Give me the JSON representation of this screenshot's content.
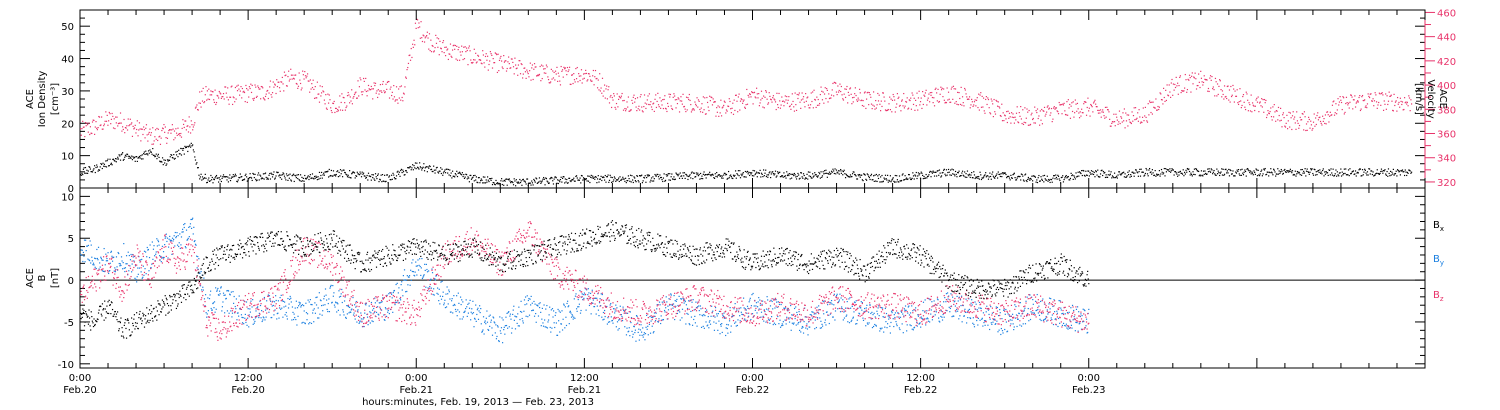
{
  "chart_data": [
    {
      "type": "scatter",
      "title": "",
      "ylabel_lines": [
        "ACE",
        "Ion Density",
        "[cm⁻³]"
      ],
      "ylim": [
        0,
        55
      ],
      "yticks": [
        0,
        10,
        20,
        30,
        40,
        50
      ],
      "y2label_lines": [
        "ACE",
        "Velocity",
        "[km/s]"
      ],
      "y2lim": [
        315,
        462
      ],
      "y2ticks": [
        320,
        340,
        360,
        380,
        400,
        420,
        440,
        460
      ],
      "xlim": [
        0,
        96
      ],
      "series": [
        {
          "name": "Ion Density",
          "color": "#000000",
          "axis": "left",
          "x": [
            0,
            1,
            2,
            3,
            4,
            5,
            6,
            7,
            8,
            8.5,
            9,
            10,
            12,
            14,
            16,
            18,
            20,
            22,
            24,
            26,
            28,
            30,
            32,
            34,
            36,
            38,
            40,
            42,
            44,
            46,
            48,
            50,
            52,
            54,
            56,
            58,
            60,
            62,
            64,
            66,
            68,
            70,
            72,
            74,
            76,
            78,
            80,
            82,
            84,
            86,
            88,
            95
          ],
          "y": [
            5,
            6,
            8,
            10,
            9,
            12,
            8,
            11,
            13,
            4,
            3,
            3,
            3.5,
            4,
            3,
            5,
            4,
            3,
            7,
            5,
            3,
            2,
            2,
            2.5,
            3,
            3,
            3,
            3.5,
            4,
            4,
            5,
            4,
            4,
            5,
            3.5,
            3,
            4,
            5,
            4,
            4,
            3,
            3,
            5,
            4,
            5,
            5,
            5,
            5,
            5,
            5,
            5,
            5
          ]
        },
        {
          "name": "Velocity",
          "color": "#e8336a",
          "axis": "right",
          "x": [
            0,
            1,
            2,
            3,
            4,
            5,
            6,
            7,
            8,
            8.5,
            9,
            10,
            11,
            12,
            13,
            14,
            15,
            16,
            17,
            18,
            19,
            20,
            21,
            22,
            23,
            24,
            25,
            26,
            28,
            30,
            32,
            34,
            36,
            37,
            38,
            40,
            42,
            44,
            46,
            48,
            50,
            52,
            54,
            56,
            58,
            60,
            62,
            64,
            66,
            68,
            70,
            72,
            74,
            76,
            78,
            80,
            82,
            84,
            86,
            88,
            90,
            92,
            95
          ],
          "y": [
            362,
            366,
            372,
            370,
            364,
            358,
            360,
            362,
            370,
            388,
            392,
            392,
            392,
            394,
            394,
            400,
            406,
            404,
            394,
            384,
            388,
            400,
            396,
            396,
            392,
            450,
            436,
            430,
            424,
            418,
            412,
            408,
            410,
            404,
            388,
            386,
            386,
            386,
            380,
            392,
            386,
            388,
            396,
            388,
            386,
            388,
            394,
            388,
            376,
            374,
            380,
            382,
            372,
            376,
            400,
            404,
            394,
            384,
            372,
            370,
            384,
            388,
            386
          ]
        }
      ]
    },
    {
      "type": "scatter",
      "title": "",
      "ylabel_lines": [
        "ACE",
        "B",
        "[nT]"
      ],
      "ylim": [
        -10.5,
        11
      ],
      "yticks": [
        -10,
        -5,
        0,
        5,
        10
      ],
      "xlim": [
        0,
        96
      ],
      "xticks": [
        0,
        12,
        24,
        36,
        48,
        60,
        72,
        84,
        96
      ],
      "xtick_labels": [
        [
          "0:00",
          "Feb.20"
        ],
        [
          "12:00",
          "Feb.20"
        ],
        [
          "0:00",
          "Feb.21"
        ],
        [
          "12:00",
          "Feb.21"
        ],
        [
          "0:00",
          "Feb.22"
        ],
        [
          "12:00",
          "Feb.22"
        ],
        [
          "0:00",
          "Feb.23"
        ]
      ],
      "xtick_label_positions": [
        0,
        12,
        24,
        36,
        48,
        60,
        72
      ],
      "xlabel": "hours:minutes, Feb. 19, 2013 — Feb. 23, 2013",
      "legend": [
        "B",
        "B",
        "B"
      ],
      "legend_subscripts": [
        "x",
        "y",
        "z"
      ],
      "legend_placement": "right",
      "series": [
        {
          "name": "Bx",
          "color": "#000000",
          "x": [
            0,
            1,
            2,
            3,
            4,
            5,
            6,
            7,
            8,
            9,
            10,
            12,
            14,
            16,
            18,
            20,
            22,
            24,
            26,
            28,
            30,
            32,
            34,
            36,
            38,
            40,
            42,
            44,
            46,
            48,
            50,
            52,
            54,
            56,
            58,
            60,
            62,
            64,
            66,
            68,
            70,
            72
          ],
          "y": [
            -4,
            -5,
            -3,
            -6,
            -5,
            -4,
            -3,
            -2,
            -1,
            2,
            3,
            4,
            5,
            4,
            5,
            2,
            3,
            4,
            3,
            4,
            2,
            3,
            4,
            5,
            6,
            5,
            4,
            3,
            4,
            2,
            3,
            2,
            3,
            1,
            4,
            3,
            0,
            -1,
            -1,
            1,
            2,
            0
          ]
        },
        {
          "name": "By",
          "color": "#1a7fe0",
          "x": [
            0,
            1,
            2,
            3,
            4,
            5,
            6,
            7,
            8,
            9,
            10,
            12,
            14,
            16,
            18,
            20,
            22,
            24,
            26,
            28,
            30,
            32,
            34,
            36,
            38,
            40,
            42,
            44,
            46,
            48,
            50,
            52,
            54,
            56,
            58,
            60,
            62,
            64,
            66,
            68,
            70,
            72
          ],
          "y": [
            4,
            3,
            2,
            3,
            1,
            3,
            4,
            5,
            6,
            -3,
            -2,
            -4,
            -3,
            -4,
            -2,
            -4,
            -3,
            2,
            -2,
            -4,
            -6,
            -3,
            -5,
            -2,
            -4,
            -6,
            -3,
            -4,
            -5,
            -3,
            -4,
            -5,
            -3,
            -4,
            -5,
            -4,
            -3,
            -4,
            -5,
            -3,
            -4,
            -5
          ]
        },
        {
          "name": "Bz",
          "color": "#e8336a",
          "x": [
            0,
            1,
            2,
            3,
            4,
            5,
            6,
            7,
            8,
            9,
            10,
            12,
            14,
            16,
            18,
            20,
            22,
            24,
            26,
            28,
            30,
            32,
            34,
            36,
            38,
            40,
            42,
            44,
            46,
            48,
            50,
            52,
            54,
            56,
            58,
            60,
            62,
            64,
            66,
            68,
            70,
            72
          ],
          "y": [
            -2,
            0,
            2,
            -1,
            3,
            0,
            4,
            2,
            4,
            -5,
            -6,
            -3,
            -2,
            4,
            2,
            -4,
            -3,
            -4,
            3,
            5,
            2,
            6,
            1,
            -1,
            -3,
            -4,
            -3,
            -2,
            -3,
            -4,
            -3,
            -4,
            -2,
            -3,
            -3,
            -4,
            -2,
            -3,
            -4,
            -3,
            -4,
            -5
          ]
        }
      ]
    }
  ]
}
